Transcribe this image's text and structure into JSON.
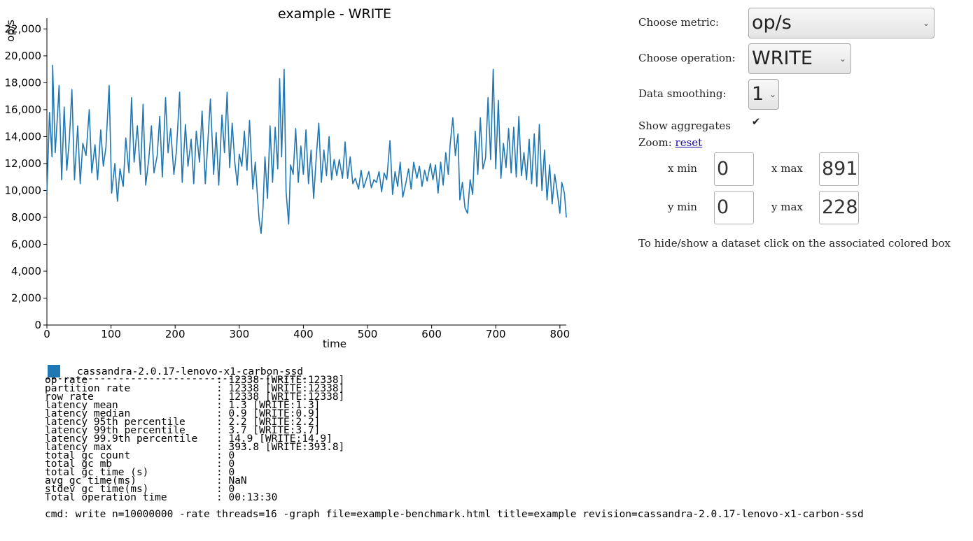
{
  "chart_data": {
    "type": "line",
    "title": "example - WRITE",
    "xlabel": "time",
    "ylabel": "op/s",
    "xlim": [
      0,
      810
    ],
    "ylim": [
      0,
      22800
    ],
    "x_ticks": [
      0,
      100,
      200,
      300,
      400,
      500,
      600,
      700,
      800
    ],
    "x_tick_labels": [
      "0",
      "100",
      "200",
      "300",
      "400",
      "500",
      "600",
      "700",
      "800"
    ],
    "y_ticks": [
      0,
      2000,
      4000,
      6000,
      8000,
      10000,
      12000,
      14000,
      16000,
      18000,
      20000,
      22000
    ],
    "y_tick_labels": [
      "0",
      "2,000",
      "4,000",
      "6,000",
      "8,000",
      "10,000",
      "12,000",
      "14,000",
      "16,000",
      "18,000",
      "20,000",
      "22,000"
    ],
    "grid": false,
    "series": [
      {
        "name": "cassandra-2.0.17-lenovo-x1-carbon-ssd",
        "color": "#1f77b4",
        "points": [
          [
            0,
            9800
          ],
          [
            4,
            15800
          ],
          [
            8,
            12500
          ],
          [
            9,
            19300
          ],
          [
            13,
            12800
          ],
          [
            17,
            16000
          ],
          [
            19,
            17800
          ],
          [
            23,
            10800
          ],
          [
            27,
            16200
          ],
          [
            31,
            11500
          ],
          [
            35,
            13800
          ],
          [
            39,
            17500
          ],
          [
            43,
            10800
          ],
          [
            48,
            14800
          ],
          [
            52,
            10500
          ],
          [
            56,
            13500
          ],
          [
            61,
            12600
          ],
          [
            66,
            16000
          ],
          [
            70,
            11300
          ],
          [
            75,
            13400
          ],
          [
            79,
            10800
          ],
          [
            84,
            14500
          ],
          [
            88,
            11800
          ],
          [
            92,
            13200
          ],
          [
            97,
            17800
          ],
          [
            101,
            9800
          ],
          [
            106,
            12000
          ],
          [
            110,
            9200
          ],
          [
            114,
            11600
          ],
          [
            119,
            10300
          ],
          [
            123,
            13900
          ],
          [
            128,
            11300
          ],
          [
            132,
            16900
          ],
          [
            136,
            12100
          ],
          [
            141,
            14800
          ],
          [
            146,
            11200
          ],
          [
            150,
            16400
          ],
          [
            154,
            10400
          ],
          [
            159,
            12400
          ],
          [
            163,
            14800
          ],
          [
            167,
            11300
          ],
          [
            172,
            12600
          ],
          [
            176,
            15500
          ],
          [
            180,
            11000
          ],
          [
            185,
            16900
          ],
          [
            189,
            12800
          ],
          [
            193,
            14600
          ],
          [
            198,
            11200
          ],
          [
            202,
            12900
          ],
          [
            207,
            17300
          ],
          [
            211,
            10600
          ],
          [
            216,
            14900
          ],
          [
            220,
            11800
          ],
          [
            225,
            13800
          ],
          [
            229,
            10500
          ],
          [
            233,
            14400
          ],
          [
            238,
            12100
          ],
          [
            242,
            15900
          ],
          [
            247,
            10500
          ],
          [
            251,
            13600
          ],
          [
            255,
            16800
          ],
          [
            260,
            11200
          ],
          [
            264,
            14300
          ],
          [
            268,
            10400
          ],
          [
            273,
            15600
          ],
          [
            277,
            12800
          ],
          [
            281,
            17300
          ],
          [
            285,
            11700
          ],
          [
            289,
            15000
          ],
          [
            293,
            12100
          ],
          [
            297,
            10400
          ],
          [
            300,
            12700
          ],
          [
            304,
            11800
          ],
          [
            308,
            14400
          ],
          [
            312,
            11500
          ],
          [
            316,
            15200
          ],
          [
            321,
            10100
          ],
          [
            325,
            12100
          ],
          [
            328,
            9800
          ],
          [
            331,
            7800
          ],
          [
            334,
            6800
          ],
          [
            337,
            8700
          ],
          [
            340,
            12500
          ],
          [
            344,
            9400
          ],
          [
            348,
            14800
          ],
          [
            352,
            10600
          ],
          [
            356,
            14700
          ],
          [
            360,
            11600
          ],
          [
            363,
            18300
          ],
          [
            366,
            12500
          ],
          [
            370,
            19000
          ],
          [
            373,
            9900
          ],
          [
            377,
            7500
          ],
          [
            380,
            11900
          ],
          [
            384,
            11200
          ],
          [
            388,
            14600
          ],
          [
            392,
            10600
          ],
          [
            396,
            13300
          ],
          [
            400,
            11200
          ],
          [
            404,
            14500
          ],
          [
            408,
            10500
          ],
          [
            412,
            13000
          ],
          [
            416,
            9400
          ],
          [
            420,
            12400
          ],
          [
            424,
            15000
          ],
          [
            428,
            10600
          ],
          [
            432,
            13000
          ],
          [
            436,
            11100
          ],
          [
            440,
            14000
          ],
          [
            444,
            10800
          ],
          [
            448,
            12300
          ],
          [
            452,
            11100
          ],
          [
            456,
            12300
          ],
          [
            461,
            10900
          ],
          [
            465,
            13600
          ],
          [
            469,
            10900
          ],
          [
            473,
            12500
          ],
          [
            477,
            10500
          ],
          [
            481,
            10900
          ],
          [
            486,
            10100
          ],
          [
            490,
            11500
          ],
          [
            494,
            10200
          ],
          [
            498,
            10800
          ],
          [
            502,
            11400
          ],
          [
            506,
            10200
          ],
          [
            510,
            10800
          ],
          [
            514,
            10600
          ],
          [
            518,
            11400
          ],
          [
            522,
            9900
          ],
          [
            526,
            11300
          ],
          [
            530,
            10800
          ],
          [
            535,
            13700
          ],
          [
            539,
            9700
          ],
          [
            543,
            11400
          ],
          [
            547,
            10300
          ],
          [
            551,
            12100
          ],
          [
            555,
            9500
          ],
          [
            560,
            10600
          ],
          [
            564,
            11600
          ],
          [
            568,
            10100
          ],
          [
            572,
            12100
          ],
          [
            577,
            10900
          ],
          [
            581,
            11800
          ],
          [
            585,
            10300
          ],
          [
            589,
            11500
          ],
          [
            593,
            10700
          ],
          [
            598,
            12000
          ],
          [
            602,
            10800
          ],
          [
            606,
            11900
          ],
          [
            610,
            9800
          ],
          [
            614,
            12100
          ],
          [
            618,
            10400
          ],
          [
            622,
            12800
          ],
          [
            626,
            11200
          ],
          [
            629,
            13500
          ],
          [
            633,
            15400
          ],
          [
            637,
            12600
          ],
          [
            641,
            14200
          ],
          [
            644,
            9300
          ],
          [
            648,
            10600
          ],
          [
            652,
            8700
          ],
          [
            656,
            8300
          ],
          [
            660,
            10800
          ],
          [
            664,
            9700
          ],
          [
            668,
            14400
          ],
          [
            672,
            11200
          ],
          [
            676,
            15400
          ],
          [
            680,
            11600
          ],
          [
            684,
            12400
          ],
          [
            688,
            16900
          ],
          [
            692,
            12300
          ],
          [
            696,
            19000
          ],
          [
            700,
            11600
          ],
          [
            704,
            16700
          ],
          [
            708,
            10900
          ],
          [
            712,
            13500
          ],
          [
            716,
            11700
          ],
          [
            720,
            14600
          ],
          [
            724,
            11300
          ],
          [
            728,
            14700
          ],
          [
            732,
            11000
          ],
          [
            736,
            15500
          ],
          [
            740,
            11100
          ],
          [
            744,
            12800
          ],
          [
            748,
            10800
          ],
          [
            752,
            13800
          ],
          [
            756,
            10500
          ],
          [
            760,
            14200
          ],
          [
            764,
            10300
          ],
          [
            768,
            14900
          ],
          [
            772,
            10000
          ],
          [
            776,
            13000
          ],
          [
            780,
            9300
          ],
          [
            784,
            11900
          ],
          [
            788,
            9000
          ],
          [
            792,
            11200
          ],
          [
            795,
            10200
          ],
          [
            800,
            8300
          ],
          [
            803,
            10600
          ],
          [
            807,
            9800
          ],
          [
            810,
            8000
          ]
        ]
      }
    ]
  },
  "controls": {
    "metric_label": "Choose metric:",
    "metric_value": "op/s",
    "operation_label": "Choose operation:",
    "operation_value": "WRITE",
    "smoothing_label": "Data smoothing:",
    "smoothing_value": "1",
    "aggregates_label": "Show aggregates",
    "aggregates_checked": true,
    "zoom_label": "Zoom:",
    "zoom_reset": "reset",
    "xmin_label": "x min",
    "xmin_value": "0",
    "xmax_label": "x max",
    "xmax_value": "891",
    "ymin_label": "y min",
    "ymin_value": "0",
    "ymax_label": "y max",
    "ymax_value": "228",
    "hint": "To hide/show a dataset click on the associated colored box"
  },
  "legend": {
    "name": "cassandra-2.0.17-lenovo-x1-carbon-ssd",
    "color": "#1f77b4"
  },
  "stats": {
    "separator": "-------------------------------------------",
    "rows": [
      {
        "label": "op rate",
        "value": ": 12338 [WRITE:12338]"
      },
      {
        "label": "partition rate",
        "value": ": 12338 [WRITE:12338]"
      },
      {
        "label": "row rate",
        "value": ": 12338 [WRITE:12338]"
      },
      {
        "label": "latency mean",
        "value": ": 1.3 [WRITE:1.3]"
      },
      {
        "label": "latency median",
        "value": ": 0.9 [WRITE:0.9]"
      },
      {
        "label": "latency 95th percentile",
        "value": ": 2.2 [WRITE:2.2]"
      },
      {
        "label": "latency 99th percentile",
        "value": ": 3.7 [WRITE:3.7]"
      },
      {
        "label": "latency 99.9th percentile",
        "value": ": 14.9 [WRITE:14.9]"
      },
      {
        "label": "latency max",
        "value": ": 393.8 [WRITE:393.8]"
      },
      {
        "label": "total gc count",
        "value": ": 0"
      },
      {
        "label": "total gc mb",
        "value": ": 0"
      },
      {
        "label": "total gc time (s)",
        "value": ": 0"
      },
      {
        "label": "avg gc time(ms)",
        "value": ": NaN"
      },
      {
        "label": "stdev gc time(ms)",
        "value": ": 0"
      },
      {
        "label": "Total operation time",
        "value": ": 00:13:30"
      }
    ],
    "cmd": "cmd: write n=10000000 -rate threads=16 -graph file=example-benchmark.html title=example revision=cassandra-2.0.17-lenovo-x1-carbon-ssd"
  }
}
